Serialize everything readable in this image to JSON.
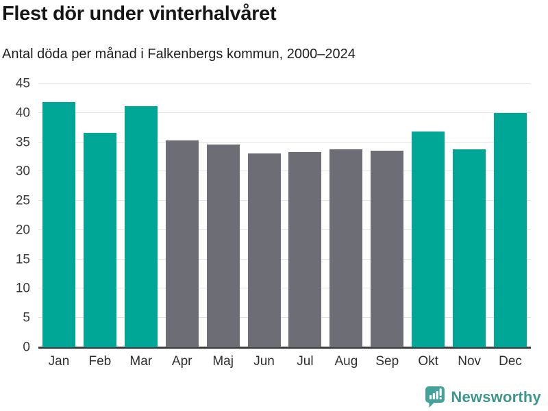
{
  "header": {
    "title": "Flest dör under vinterhalvåret",
    "subtitle": "Antal döda per månad i Falkenbergs kommun, 2000–2024"
  },
  "chart_data": {
    "type": "bar",
    "title": "Flest dör under vinterhalvåret",
    "subtitle": "Antal döda per månad i Falkenbergs kommun, 2000–2024",
    "categories": [
      "Jan",
      "Feb",
      "Mar",
      "Apr",
      "Maj",
      "Jun",
      "Jul",
      "Aug",
      "Sep",
      "Okt",
      "Nov",
      "Dec"
    ],
    "values": [
      41.8,
      36.6,
      41.2,
      35.3,
      34.6,
      33.1,
      33.3,
      33.8,
      33.5,
      36.8,
      33.8,
      40.0
    ],
    "bar_colors": [
      "#00A696",
      "#00A696",
      "#00A696",
      "#6D6D75",
      "#6D6D75",
      "#6D6D75",
      "#6D6D75",
      "#6D6D75",
      "#6D6D75",
      "#00A696",
      "#00A696",
      "#00A696"
    ],
    "highlight_color": "#00A696",
    "muted_color": "#6D6D75",
    "xlabel": "",
    "ylabel": "",
    "ylim": [
      0,
      45
    ],
    "yticks": [
      0,
      5,
      10,
      15,
      20,
      25,
      30,
      35,
      40,
      45
    ],
    "grid": true,
    "legend_position": "none"
  },
  "footer": {
    "brand": "Newsworthy",
    "logo_icon": "newsworthy-speech-bubble-barchart-icon",
    "brand_color": "#3F968F",
    "icon_color": "#45A19B"
  },
  "colors": {
    "grid": "#E1E1E1",
    "axis": "#3C3C3C",
    "tick_text": "#3A3A3A",
    "title_text": "#161616"
  }
}
